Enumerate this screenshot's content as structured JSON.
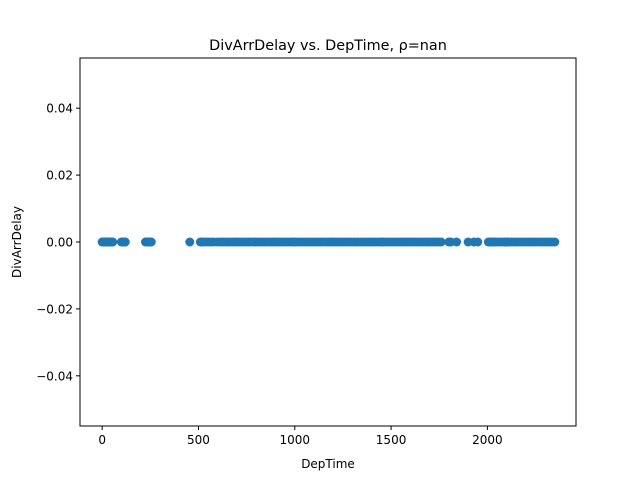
{
  "chart_data": {
    "type": "scatter",
    "title": "DivArrDelay vs. DepTime, ρ=nan",
    "xlabel": "DepTime",
    "ylabel": "DivArrDelay",
    "xlim": [
      -115,
      2460
    ],
    "ylim": [
      -0.055,
      0.055
    ],
    "xticks": [
      0,
      500,
      1000,
      1500,
      2000
    ],
    "xtick_labels": [
      "0",
      "500",
      "1000",
      "1500",
      "2000"
    ],
    "yticks": [
      -0.04,
      -0.02,
      0.0,
      0.02,
      0.04
    ],
    "ytick_labels": [
      "−0.04",
      "−0.02",
      "0.00",
      "0.02",
      "0.04"
    ],
    "grid": false,
    "marker_color": "#1f77b4",
    "x": [
      0,
      5,
      10,
      15,
      20,
      25,
      30,
      35,
      40,
      45,
      50,
      55,
      100,
      105,
      110,
      115,
      120,
      225,
      230,
      235,
      240,
      245,
      250,
      255,
      455,
      510,
      520,
      535,
      550,
      565,
      580,
      600,
      615,
      630,
      645,
      660,
      675,
      690,
      700,
      715,
      730,
      745,
      760,
      775,
      790,
      800,
      815,
      830,
      845,
      860,
      875,
      890,
      900,
      915,
      930,
      945,
      960,
      975,
      990,
      1000,
      1015,
      1030,
      1045,
      1060,
      1075,
      1090,
      1105,
      1120,
      1135,
      1150,
      1165,
      1180,
      1195,
      1205,
      1220,
      1235,
      1250,
      1265,
      1280,
      1295,
      1310,
      1325,
      1340,
      1355,
      1370,
      1385,
      1400,
      1415,
      1430,
      1445,
      1460,
      1475,
      1490,
      1505,
      1520,
      1535,
      1550,
      1565,
      1580,
      1595,
      1610,
      1625,
      1640,
      1655,
      1670,
      1685,
      1700,
      1715,
      1730,
      1745,
      1760,
      1800,
      1810,
      1840,
      1900,
      1930,
      1950,
      2005,
      2015,
      2025,
      2035,
      2045,
      2060,
      2075,
      2090,
      2100,
      2110,
      2125,
      2140,
      2155,
      2170,
      2185,
      2200,
      2215,
      2230,
      2245,
      2260,
      2275,
      2290,
      2305,
      2320,
      2335,
      2350
    ],
    "y": 0.0
  }
}
